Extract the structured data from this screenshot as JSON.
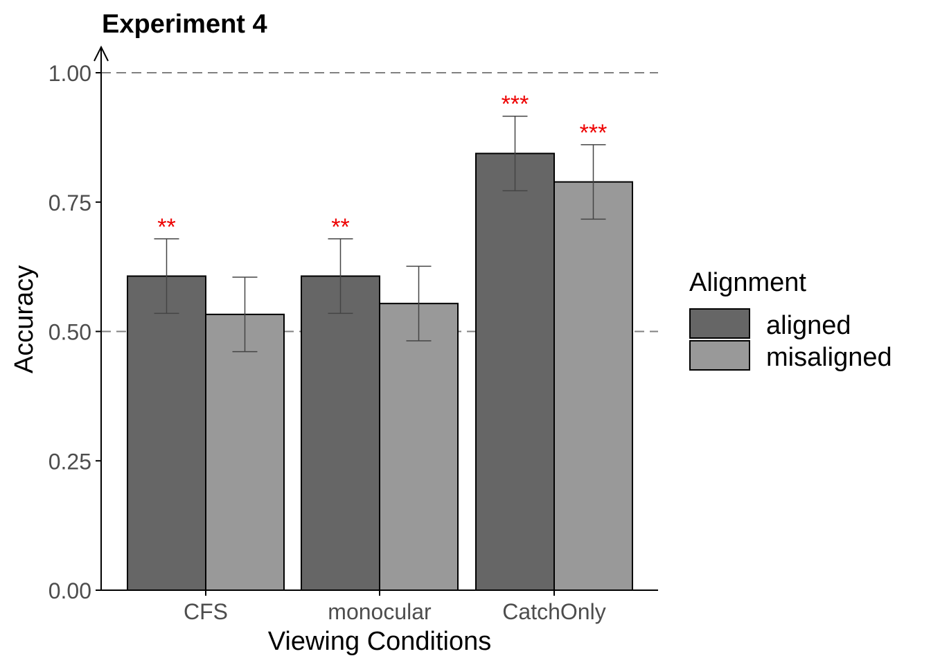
{
  "chart_data": {
    "type": "bar",
    "title": "Experiment 4",
    "xlabel": "Viewing Conditions",
    "ylabel": "Accuracy",
    "categories": [
      "CFS",
      "monocular",
      "CatchOnly"
    ],
    "ylim": [
      0,
      1
    ],
    "yticks": [
      "0.00",
      "0.25",
      "0.50",
      "0.75",
      "1.00"
    ],
    "reference_lines": [
      0.5,
      1.0
    ],
    "legend": {
      "title": "Alignment",
      "position": "right"
    },
    "series": [
      {
        "name": "aligned",
        "color": "#666666",
        "values": [
          0.607,
          0.607,
          0.844
        ],
        "error_low": [
          0.535,
          0.535,
          0.772
        ],
        "error_high": [
          0.679,
          0.679,
          0.916
        ],
        "significance": [
          "**",
          "**",
          "***"
        ]
      },
      {
        "name": "misaligned",
        "color": "#999999",
        "values": [
          0.533,
          0.554,
          0.789
        ],
        "error_low": [
          0.461,
          0.482,
          0.717
        ],
        "error_high": [
          0.605,
          0.626,
          0.861
        ],
        "significance": [
          "",
          "",
          "***"
        ]
      }
    ],
    "significance_color": "#ee0000",
    "grid": false
  }
}
